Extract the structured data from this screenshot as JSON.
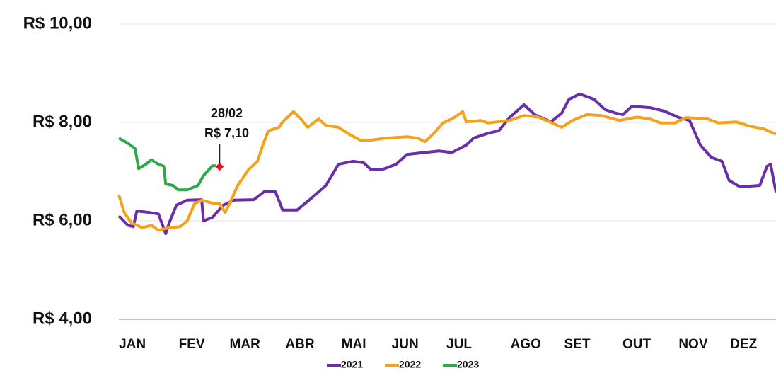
{
  "chart_data": {
    "type": "line",
    "xlim": [
      0,
      365
    ],
    "ylim": [
      4,
      10
    ],
    "yticks": [
      {
        "value": 10,
        "label": "R$ 10,00"
      },
      {
        "value": 8,
        "label": "R$ 8,00"
      },
      {
        "value": 6,
        "label": "R$ 6,00"
      },
      {
        "value": 4,
        "label": "R$ 4,00"
      }
    ],
    "xticks": [
      {
        "value": 7.5,
        "label": "JAN"
      },
      {
        "value": 40.5,
        "label": "FEV"
      },
      {
        "value": 70,
        "label": "MAR"
      },
      {
        "value": 100.6,
        "label": "ABR"
      },
      {
        "value": 130.5,
        "label": "MAI"
      },
      {
        "value": 159,
        "label": "JUN"
      },
      {
        "value": 189,
        "label": "JUL"
      },
      {
        "value": 226,
        "label": "AGO"
      },
      {
        "value": 254.6,
        "label": "SET"
      },
      {
        "value": 287.6,
        "label": "OUT"
      },
      {
        "value": 319,
        "label": "NOV"
      },
      {
        "value": 347,
        "label": "DEZ"
      }
    ],
    "grid": true,
    "grid_color": "#e4e4e4",
    "axis_color": "#8e6bb8",
    "series": [
      {
        "name": "2021",
        "color": "#6a2fa8",
        "x": [
          0,
          5,
          8,
          10,
          17,
          22,
          26,
          28,
          32,
          38,
          46,
          47,
          52,
          58,
          64,
          75,
          81,
          87,
          91,
          99,
          107,
          115,
          122,
          130,
          136,
          140,
          146,
          154,
          160,
          170,
          178,
          185,
          193,
          197,
          205,
          211,
          217,
          225,
          231,
          240,
          246,
          250,
          256,
          264,
          270,
          276,
          280,
          285,
          295,
          303,
          311,
          317,
          323,
          329,
          335,
          339,
          345,
          356,
          360,
          362,
          365
        ],
        "values": [
          6.1,
          5.91,
          5.88,
          6.2,
          6.17,
          6.14,
          5.74,
          5.96,
          6.32,
          6.42,
          6.43,
          6.0,
          6.07,
          6.32,
          6.42,
          6.43,
          6.6,
          6.59,
          6.22,
          6.22,
          6.46,
          6.72,
          7.15,
          7.21,
          7.18,
          7.04,
          7.04,
          7.15,
          7.35,
          7.39,
          7.42,
          7.39,
          7.54,
          7.68,
          7.78,
          7.83,
          8.1,
          8.36,
          8.16,
          8.01,
          8.19,
          8.47,
          8.58,
          8.47,
          8.26,
          8.19,
          8.16,
          8.33,
          8.3,
          8.23,
          8.1,
          8.04,
          7.54,
          7.29,
          7.21,
          6.82,
          6.69,
          6.72,
          7.11,
          7.15,
          6.58
        ]
      },
      {
        "name": "2022",
        "color": "#f4a11c",
        "x": [
          0,
          3,
          7,
          13,
          18,
          22,
          28,
          34,
          38,
          42,
          46,
          52,
          56,
          59,
          62,
          66,
          72,
          77,
          80,
          83,
          89,
          91,
          97,
          101,
          105,
          111,
          115,
          122,
          128,
          134,
          140,
          148,
          160,
          166,
          170,
          175,
          180,
          185,
          191,
          193,
          201,
          205,
          217,
          225,
          233,
          240,
          246,
          252,
          260,
          268,
          278,
          288,
          295,
          301,
          309,
          315,
          327,
          333,
          343,
          350,
          358,
          365
        ],
        "values": [
          6.53,
          6.17,
          5.96,
          5.86,
          5.91,
          5.81,
          5.86,
          5.88,
          6.0,
          6.35,
          6.42,
          6.36,
          6.35,
          6.17,
          6.39,
          6.72,
          7.04,
          7.21,
          7.54,
          7.83,
          7.9,
          8.01,
          8.22,
          8.07,
          7.9,
          8.07,
          7.94,
          7.9,
          7.76,
          7.64,
          7.64,
          7.68,
          7.71,
          7.68,
          7.61,
          7.78,
          7.99,
          8.07,
          8.22,
          8.01,
          8.04,
          7.99,
          8.04,
          8.14,
          8.11,
          8.0,
          7.9,
          8.04,
          8.16,
          8.14,
          8.04,
          8.11,
          8.07,
          7.99,
          7.99,
          8.1,
          8.07,
          7.99,
          8.01,
          7.93,
          7.87,
          7.76
        ]
      },
      {
        "name": "2023",
        "color": "#2fa84a",
        "x": [
          0,
          5,
          9,
          11,
          15,
          18,
          22,
          25,
          26,
          30,
          33,
          38,
          44,
          47,
          50,
          52,
          54
        ],
        "values": [
          7.68,
          7.58,
          7.47,
          7.06,
          7.15,
          7.24,
          7.15,
          7.11,
          6.75,
          6.72,
          6.63,
          6.63,
          6.72,
          6.92,
          7.04,
          7.12,
          7.12
        ]
      }
    ],
    "annotation": {
      "x": 56,
      "value": 7.1,
      "color": "#e8121c",
      "lines": [
        "28/02",
        "R$ 7,10"
      ]
    },
    "legend": "bottom"
  }
}
